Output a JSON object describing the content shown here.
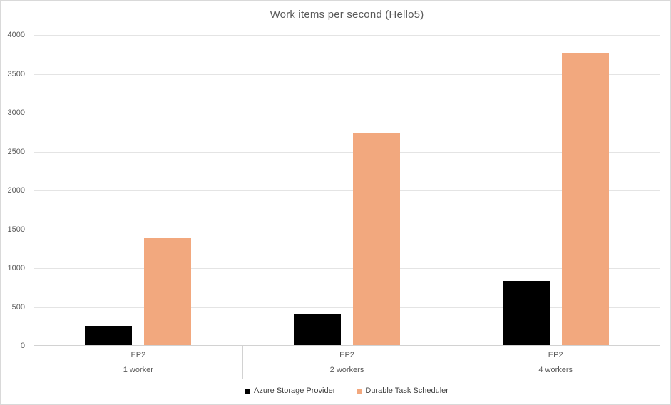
{
  "chart_data": {
    "type": "bar",
    "title": "Work items per second (Hello5)",
    "categories": [
      {
        "line1": "EP2",
        "line2": "1 worker"
      },
      {
        "line1": "EP2",
        "line2": "2 workers"
      },
      {
        "line1": "EP2",
        "line2": "4 workers"
      }
    ],
    "series": [
      {
        "name": "Azure Storage Provider",
        "color": "#000000",
        "values": [
          260,
          415,
          835
        ]
      },
      {
        "name": "Durable Task Scheduler",
        "color": "#F2A87E",
        "values": [
          1390,
          2730,
          3760
        ]
      }
    ],
    "xlabel": "",
    "ylabel": "",
    "ylim": [
      0,
      4000
    ],
    "ytick_step": 500,
    "yticks": [
      0,
      500,
      1000,
      1500,
      2000,
      2500,
      3000,
      3500,
      4000
    ],
    "grid": true,
    "legend_position": "bottom"
  },
  "styles": {
    "background": "#FFFFFF",
    "border_color": "#D9D9D9",
    "grid_color": "#E4E4E4",
    "axis_line_color": "#D2D2D2",
    "axis_text_color": "#595959",
    "legend_text_color": "#404040"
  }
}
